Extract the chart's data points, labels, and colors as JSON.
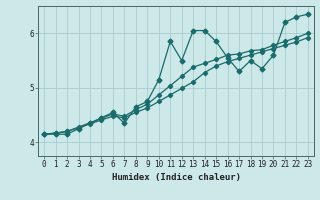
{
  "xlabel": "Humidex (Indice chaleur)",
  "bg_color": "#cce8e8",
  "grid_color": "#aacccc",
  "line_color": "#1a6b6b",
  "xlim": [
    -0.5,
    23.5
  ],
  "ylim": [
    3.75,
    6.5
  ],
  "yticks": [
    4,
    5,
    6
  ],
  "xticks": [
    0,
    1,
    2,
    3,
    4,
    5,
    6,
    7,
    8,
    9,
    10,
    11,
    12,
    13,
    14,
    15,
    16,
    17,
    18,
    19,
    20,
    21,
    22,
    23
  ],
  "series": [
    [
      4.15,
      4.15,
      4.15,
      4.25,
      4.35,
      4.45,
      4.55,
      4.35,
      4.65,
      4.75,
      5.15,
      5.85,
      5.5,
      6.05,
      6.05,
      5.85,
      5.55,
      5.3,
      5.5,
      5.35,
      5.6,
      6.2,
      6.3,
      6.35
    ],
    [
      4.15,
      4.17,
      4.2,
      4.28,
      4.36,
      4.44,
      4.52,
      4.48,
      4.6,
      4.7,
      4.87,
      5.04,
      5.21,
      5.38,
      5.45,
      5.52,
      5.6,
      5.62,
      5.68,
      5.7,
      5.78,
      5.85,
      5.92,
      6.0
    ],
    [
      4.15,
      4.17,
      4.2,
      4.27,
      4.34,
      4.41,
      4.48,
      4.45,
      4.55,
      4.63,
      4.75,
      4.87,
      4.99,
      5.11,
      5.28,
      5.4,
      5.48,
      5.54,
      5.6,
      5.66,
      5.72,
      5.78,
      5.84,
      5.92
    ]
  ]
}
